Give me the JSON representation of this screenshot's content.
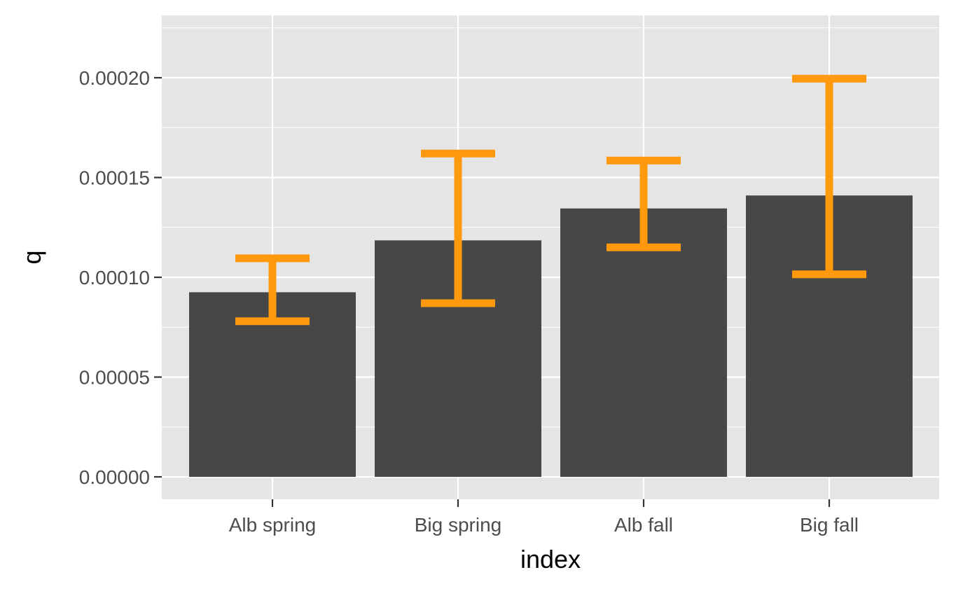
{
  "chart_data": {
    "type": "bar",
    "title": "",
    "xlabel": "index",
    "ylabel": "q",
    "categories": [
      "Alb spring",
      "Big spring",
      "Alb fall",
      "Big fall"
    ],
    "values": [
      9.25e-05,
      0.0001185,
      0.0001345,
      0.000141
    ],
    "error_bars": [
      {
        "lower": 7.8e-05,
        "upper": 0.0001095
      },
      {
        "lower": 8.7e-05,
        "upper": 0.000162
      },
      {
        "lower": 0.000115,
        "upper": 0.0001585
      },
      {
        "lower": 0.0001015,
        "upper": 0.0001995
      }
    ],
    "ylim": [
      -1.13e-05,
      0.00023
    ],
    "yticks": [
      0,
      5e-05,
      0.0001,
      0.00015,
      0.0002
    ],
    "ytick_labels": [
      "0.00000",
      "0.00005",
      "0.00010",
      "0.00015",
      "0.00020"
    ],
    "grid": true,
    "legend": "none",
    "colors": {
      "bar": "#474747",
      "error_bar": "#ff9a0e",
      "panel": "#e5e5e5",
      "grid": "#ffffff",
      "tick_text": "#4d4d4d"
    }
  }
}
